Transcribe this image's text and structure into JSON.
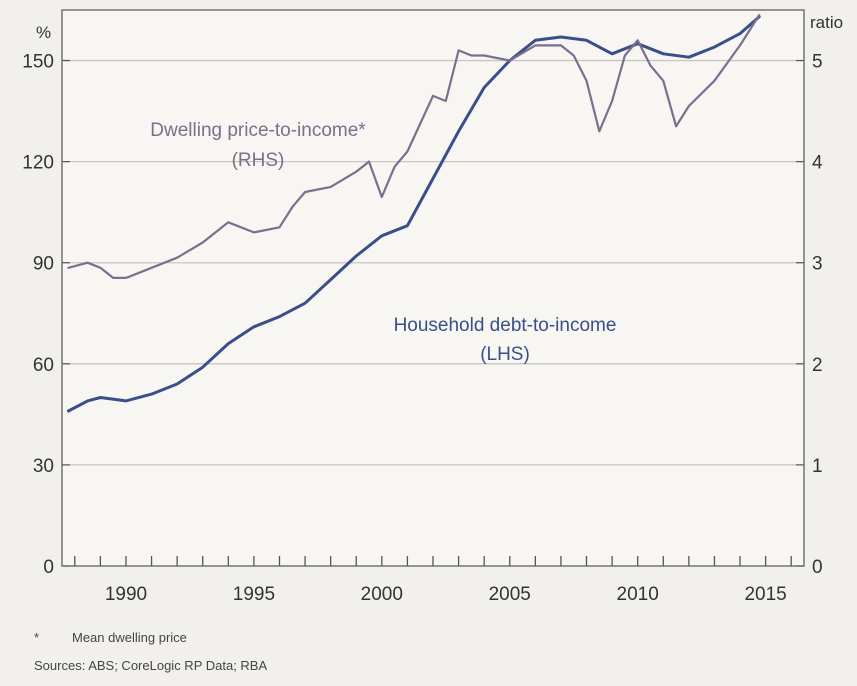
{
  "chart_data": {
    "type": "line",
    "left_axis_unit": "%",
    "right_axis_unit": "ratio",
    "left_ticks": [
      "0",
      "30",
      "60",
      "90",
      "120",
      "150"
    ],
    "right_ticks": [
      "0",
      "1",
      "2",
      "3",
      "4",
      "5"
    ],
    "x_ticks": [
      "1990",
      "1995",
      "2000",
      "2005",
      "2010",
      "2015"
    ],
    "left_range": [
      0,
      165
    ],
    "right_range": [
      0,
      5.5
    ],
    "x_range": [
      1987.5,
      2016.5
    ],
    "grid": "horizontal",
    "series": [
      {
        "name": "Household debt-to-income",
        "sublabel": "(LHS)",
        "axis": "left",
        "color": "#3a4f8a",
        "x": [
          1987.75,
          1988.5,
          1989,
          1990,
          1991,
          1992,
          1993,
          1994,
          1995,
          1996,
          1997,
          1998,
          1999,
          2000,
          2001,
          2002,
          2003,
          2004,
          2005,
          2006,
          2007,
          2008,
          2009,
          2010,
          2011,
          2012,
          2013,
          2014,
          2014.75
        ],
        "values": [
          46,
          49,
          50,
          49,
          51,
          54,
          59,
          66,
          71,
          74,
          78,
          85,
          92,
          98,
          101,
          115,
          129,
          142,
          150,
          156,
          157,
          156,
          152,
          155,
          152,
          151,
          154,
          158,
          163
        ]
      },
      {
        "name": "Dwelling price-to-income*",
        "sublabel": "(RHS)",
        "axis": "right",
        "color": "#7a6f8c",
        "x": [
          1987.75,
          1988.5,
          1989,
          1989.5,
          1990,
          1991,
          1992,
          1993,
          1994,
          1995,
          1996,
          1996.5,
          1997,
          1998,
          1999,
          1999.5,
          2000,
          2000.5,
          2001,
          2002,
          2002.5,
          2003,
          2003.5,
          2004,
          2005,
          2006,
          2007,
          2007.5,
          2008,
          2008.5,
          2009,
          2009.5,
          2010,
          2010.5,
          2011,
          2011.5,
          2012,
          2013,
          2014,
          2014.75
        ],
        "values": [
          2.95,
          3.0,
          2.95,
          2.85,
          2.85,
          2.95,
          3.05,
          3.2,
          3.4,
          3.3,
          3.35,
          3.55,
          3.7,
          3.75,
          3.9,
          4.0,
          3.65,
          3.95,
          4.1,
          4.65,
          4.6,
          5.1,
          5.05,
          5.05,
          5.0,
          5.15,
          5.15,
          5.05,
          4.8,
          4.3,
          4.6,
          5.05,
          5.2,
          4.95,
          4.8,
          4.35,
          4.55,
          4.8,
          5.15,
          5.45
        ]
      }
    ],
    "footnote_marker": "*",
    "footnote": "Mean dwelling price",
    "sources": "Sources:  ABS; CoreLogic RP Data; RBA"
  }
}
